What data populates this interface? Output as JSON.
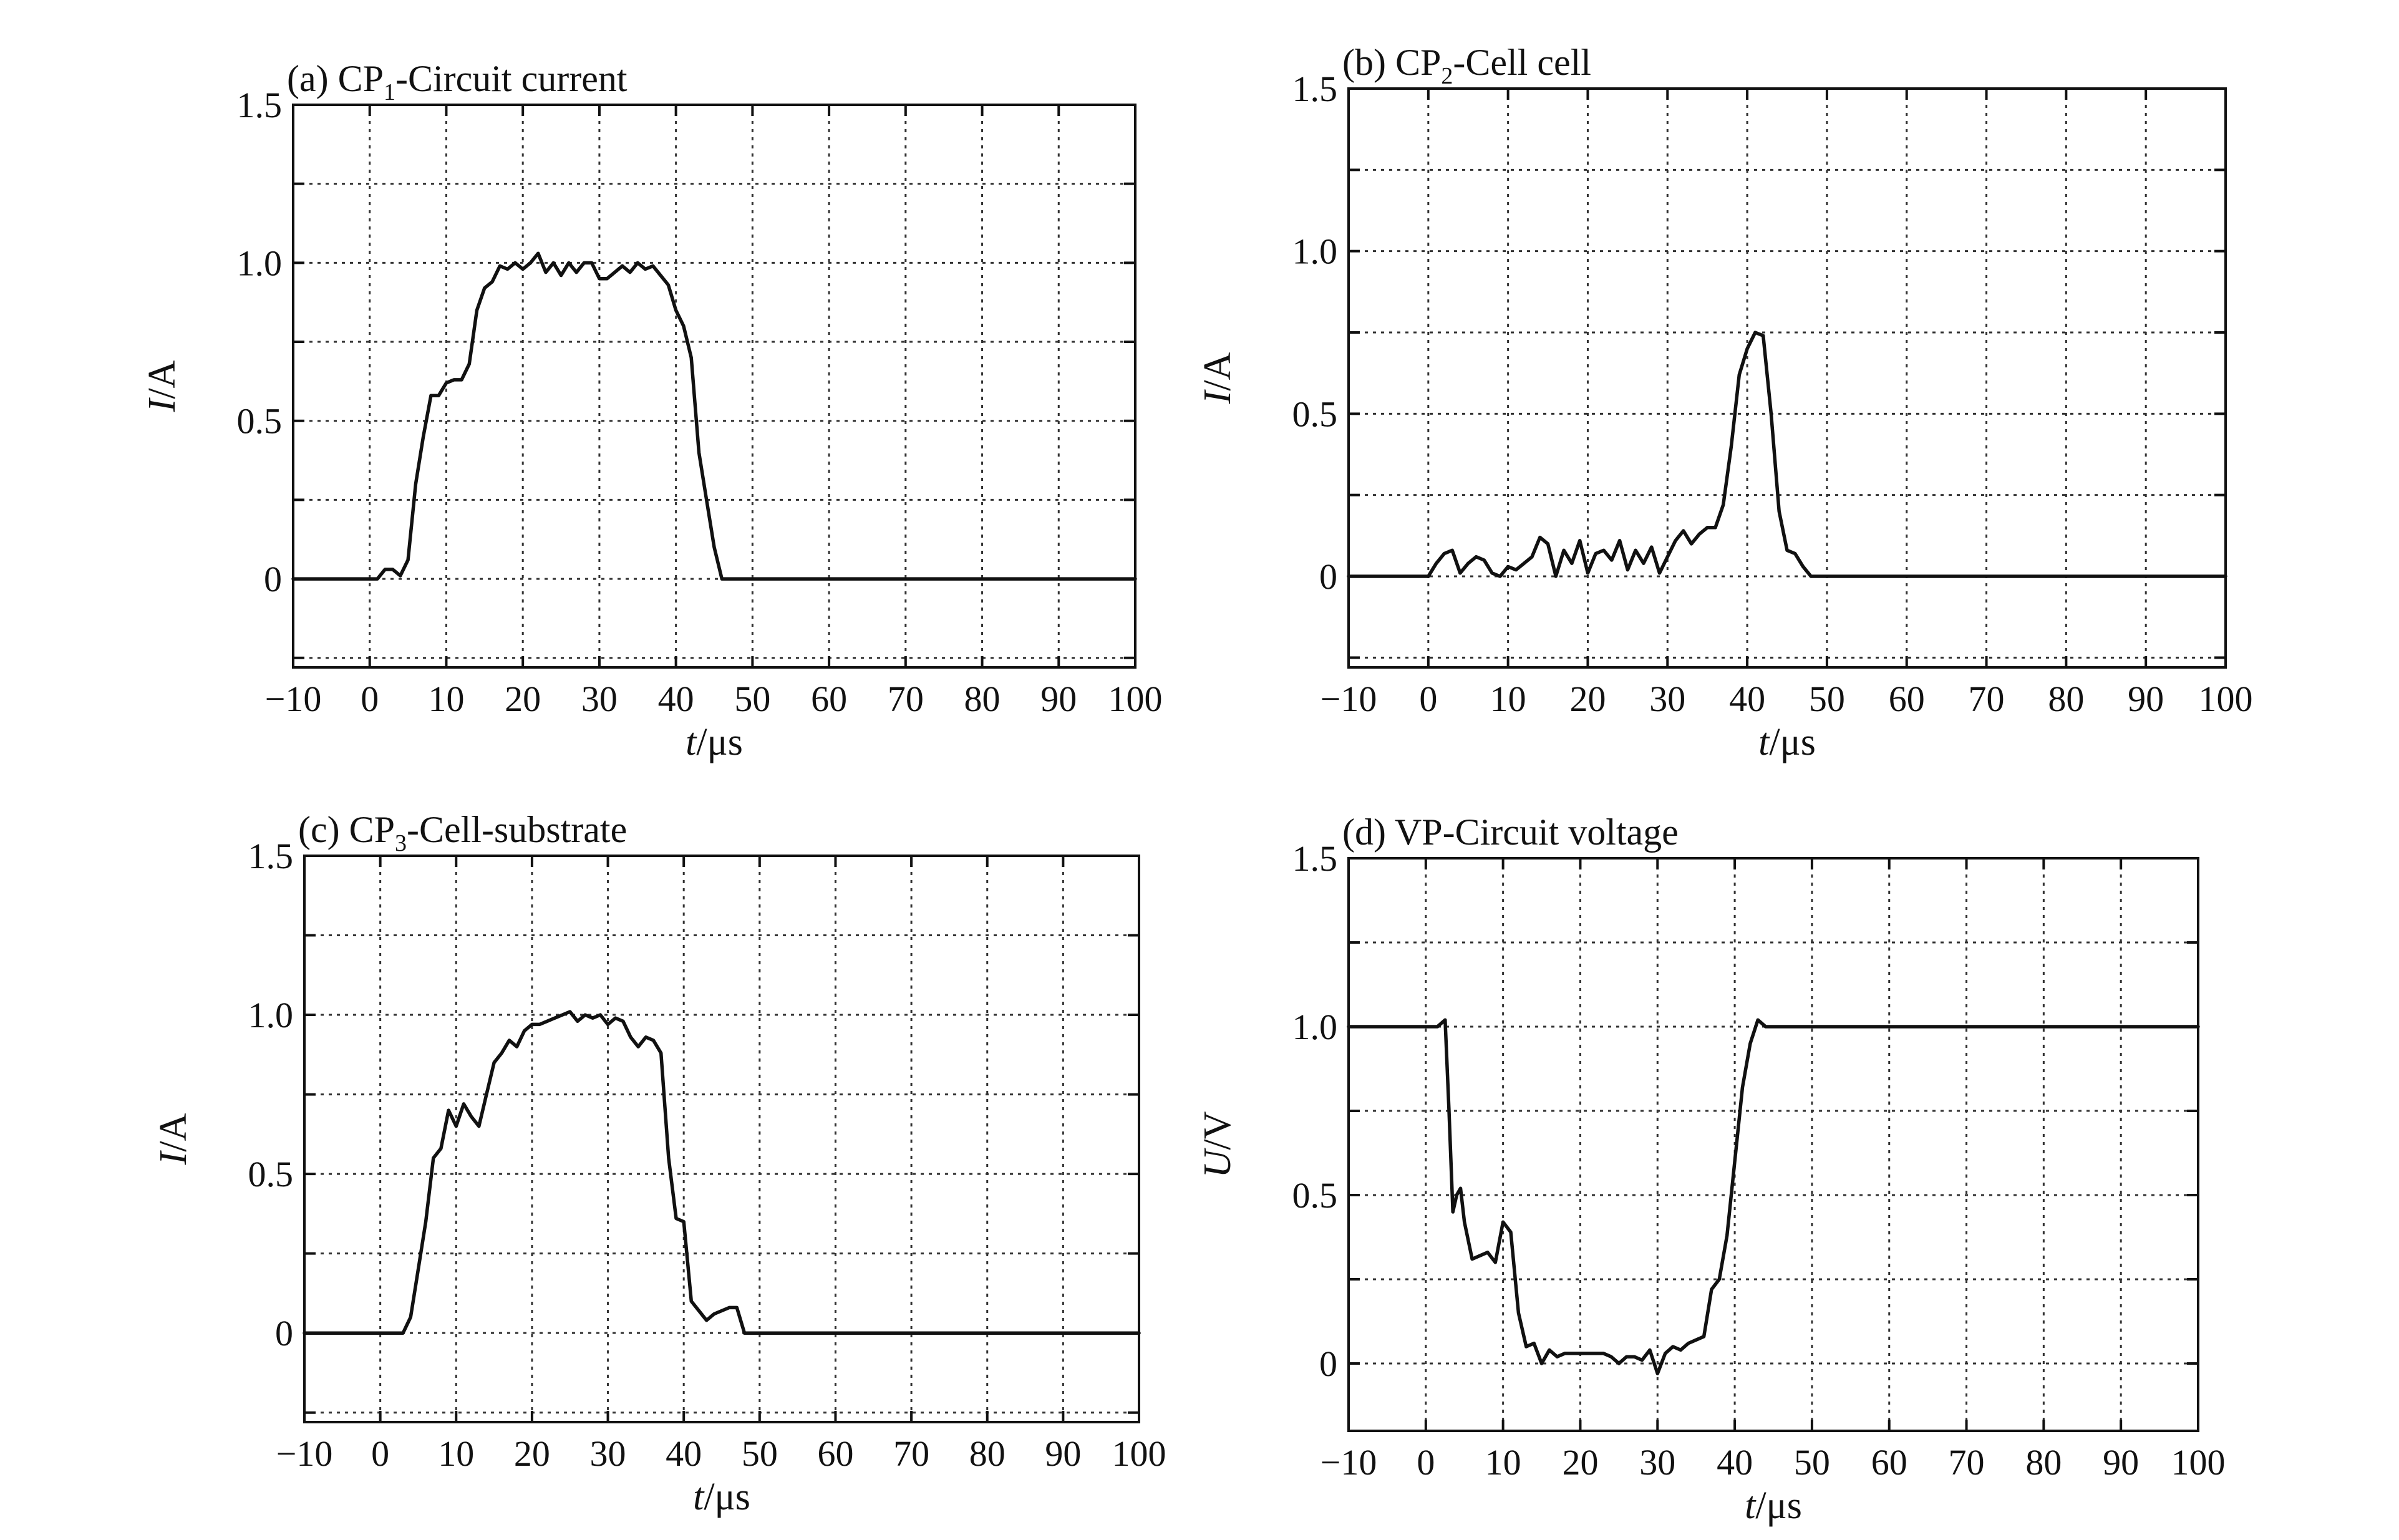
{
  "chart_data": [
    {
      "type": "line",
      "title": "(a) CP",
      "title_sub": "1",
      "title_rest": "-Circuit current",
      "xlabel_var": "t",
      "xlabel_unit": "/μs",
      "ylabel_var": "I",
      "ylabel_unit": "/A",
      "xlim": [
        -10,
        100
      ],
      "ylim": [
        -0.28,
        1.5
      ],
      "xticks": [
        -10,
        0,
        10,
        20,
        30,
        40,
        50,
        60,
        70,
        80,
        90,
        100
      ],
      "xtick_labels": [
        "−10",
        "0",
        "10",
        "20",
        "30",
        "40",
        "50",
        "60",
        "70",
        "80",
        "90",
        "100"
      ],
      "yticks": [
        0,
        0.5,
        1.0,
        1.5
      ],
      "ytick_labels": [
        "0",
        "0.5",
        "1.0",
        "1.5"
      ],
      "grid": true,
      "series": [
        {
          "x": [
            -10,
            1,
            2,
            3,
            4,
            5,
            6,
            7,
            8,
            9,
            10,
            11,
            12,
            13,
            14,
            15,
            16,
            17,
            18,
            19,
            20,
            21,
            22,
            23,
            24,
            25,
            26,
            27,
            28,
            29,
            30,
            31,
            32,
            33,
            34,
            35,
            36,
            37,
            38,
            39,
            40,
            41,
            42,
            43,
            44,
            45,
            46,
            47,
            100
          ],
          "y": [
            0,
            0,
            0.03,
            0.03,
            0.01,
            0.06,
            0.3,
            0.45,
            0.58,
            0.58,
            0.62,
            0.63,
            0.63,
            0.68,
            0.85,
            0.92,
            0.94,
            0.99,
            0.98,
            1.0,
            0.98,
            1.0,
            1.03,
            0.97,
            1.0,
            0.96,
            1.0,
            0.97,
            1.0,
            1.0,
            0.95,
            0.95,
            0.97,
            0.99,
            0.97,
            1.0,
            0.98,
            0.99,
            0.96,
            0.93,
            0.85,
            0.8,
            0.7,
            0.4,
            0.25,
            0.1,
            0.0,
            0,
            0
          ]
        }
      ]
    },
    {
      "type": "line",
      "title": "(b) CP",
      "title_sub": "2",
      "title_rest": "-Cell cell",
      "xlabel_var": "t",
      "xlabel_unit": "/μs",
      "ylabel_var": "I",
      "ylabel_unit": "/A",
      "xlim": [
        -10,
        100
      ],
      "ylim": [
        -0.28,
        1.5
      ],
      "xticks": [
        -10,
        0,
        10,
        20,
        30,
        40,
        50,
        60,
        70,
        80,
        90,
        100
      ],
      "xtick_labels": [
        "−10",
        "0",
        "10",
        "20",
        "30",
        "40",
        "50",
        "60",
        "70",
        "80",
        "90",
        "100"
      ],
      "yticks": [
        0,
        0.5,
        1.0,
        1.5
      ],
      "ytick_labels": [
        "0",
        "0.5",
        "1.0",
        "1.5"
      ],
      "grid": true,
      "series": [
        {
          "x": [
            -10,
            0,
            1,
            2,
            3,
            4,
            5,
            6,
            7,
            8,
            9,
            10,
            11,
            12,
            13,
            14,
            15,
            16,
            17,
            18,
            19,
            20,
            21,
            22,
            23,
            24,
            25,
            26,
            27,
            28,
            29,
            30,
            31,
            32,
            33,
            34,
            35,
            36,
            37,
            38,
            39,
            40,
            41,
            42,
            43,
            44,
            45,
            46,
            47,
            48,
            100
          ],
          "y": [
            0,
            0,
            0.04,
            0.07,
            0.08,
            0.01,
            0.04,
            0.06,
            0.05,
            0.01,
            0.0,
            0.03,
            0.02,
            0.04,
            0.06,
            0.12,
            0.1,
            0.0,
            0.08,
            0.04,
            0.11,
            0.01,
            0.07,
            0.08,
            0.05,
            0.11,
            0.02,
            0.08,
            0.04,
            0.09,
            0.01,
            0.06,
            0.11,
            0.14,
            0.1,
            0.13,
            0.15,
            0.15,
            0.22,
            0.4,
            0.62,
            0.7,
            0.75,
            0.74,
            0.5,
            0.2,
            0.08,
            0.07,
            0.03,
            0,
            0
          ]
        }
      ]
    },
    {
      "type": "line",
      "title": "(c) CP",
      "title_sub": "3",
      "title_rest": "-Cell-substrate",
      "xlabel_var": "t",
      "xlabel_unit": "/μs",
      "ylabel_var": "I",
      "ylabel_unit": "/A",
      "xlim": [
        -10,
        100
      ],
      "ylim": [
        -0.28,
        1.5
      ],
      "xticks": [
        -10,
        0,
        10,
        20,
        30,
        40,
        50,
        60,
        70,
        80,
        90,
        100
      ],
      "xtick_labels": [
        "−10",
        "0",
        "10",
        "20",
        "30",
        "40",
        "50",
        "60",
        "70",
        "80",
        "90",
        "100"
      ],
      "yticks": [
        0,
        0.5,
        1.0,
        1.5
      ],
      "ytick_labels": [
        "0",
        "0.5",
        "1.0",
        "1.5"
      ],
      "grid": true,
      "series": [
        {
          "x": [
            -10,
            3,
            4,
            5,
            6,
            7,
            8,
            9,
            10,
            11,
            12,
            13,
            14,
            15,
            16,
            17,
            18,
            19,
            20,
            21,
            22,
            23,
            24,
            25,
            26,
            27,
            28,
            29,
            30,
            31,
            32,
            33,
            34,
            35,
            36,
            37,
            38,
            39,
            40,
            41,
            42,
            43,
            44,
            45,
            46,
            47,
            48,
            100
          ],
          "y": [
            0,
            0,
            0.05,
            0.2,
            0.35,
            0.55,
            0.58,
            0.7,
            0.65,
            0.72,
            0.68,
            0.65,
            0.75,
            0.85,
            0.88,
            0.92,
            0.9,
            0.95,
            0.97,
            0.97,
            0.98,
            0.99,
            1.0,
            1.01,
            0.98,
            1.0,
            0.99,
            1.0,
            0.97,
            0.99,
            0.98,
            0.93,
            0.9,
            0.93,
            0.92,
            0.88,
            0.55,
            0.36,
            0.35,
            0.1,
            0.07,
            0.04,
            0.06,
            0.07,
            0.08,
            0.08,
            0,
            0
          ]
        }
      ]
    },
    {
      "type": "line",
      "title": "(d) VP-Circuit voltage",
      "title_sub": "",
      "title_rest": "",
      "xlabel_var": "t",
      "xlabel_unit": "/μs",
      "ylabel_var": "U",
      "ylabel_unit": "/V",
      "xlim": [
        -10,
        100
      ],
      "ylim": [
        -0.2,
        1.5
      ],
      "xticks": [
        -10,
        0,
        10,
        20,
        30,
        40,
        50,
        60,
        70,
        80,
        90,
        100
      ],
      "xtick_labels": [
        "−10",
        "0",
        "10",
        "20",
        "30",
        "40",
        "50",
        "60",
        "70",
        "80",
        "90",
        "100"
      ],
      "yticks": [
        0,
        0.5,
        1.0,
        1.5
      ],
      "ytick_labels": [
        "0",
        "0.5",
        "1.0",
        "1.5"
      ],
      "grid": true,
      "series": [
        {
          "x": [
            -10,
            1.5,
            2.5,
            3,
            3.5,
            4,
            4.5,
            5,
            6,
            7,
            8,
            9,
            10,
            11,
            12,
            13,
            14,
            15,
            16,
            17,
            18,
            19,
            20,
            21,
            22,
            23,
            24,
            25,
            26,
            27,
            28,
            29,
            30,
            31,
            32,
            33,
            34,
            35,
            36,
            37,
            38,
            39,
            40,
            41,
            42,
            43,
            44,
            100
          ],
          "y": [
            1.0,
            1.0,
            1.02,
            0.75,
            0.45,
            0.5,
            0.52,
            0.42,
            0.31,
            0.32,
            0.33,
            0.3,
            0.42,
            0.39,
            0.15,
            0.05,
            0.06,
            0.0,
            0.04,
            0.02,
            0.03,
            0.03,
            0.03,
            0.03,
            0.03,
            0.03,
            0.02,
            0.0,
            0.02,
            0.02,
            0.01,
            0.04,
            -0.03,
            0.03,
            0.05,
            0.04,
            0.06,
            0.07,
            0.08,
            0.22,
            0.25,
            0.38,
            0.6,
            0.82,
            0.95,
            1.02,
            1.0,
            1.0
          ]
        }
      ]
    }
  ]
}
